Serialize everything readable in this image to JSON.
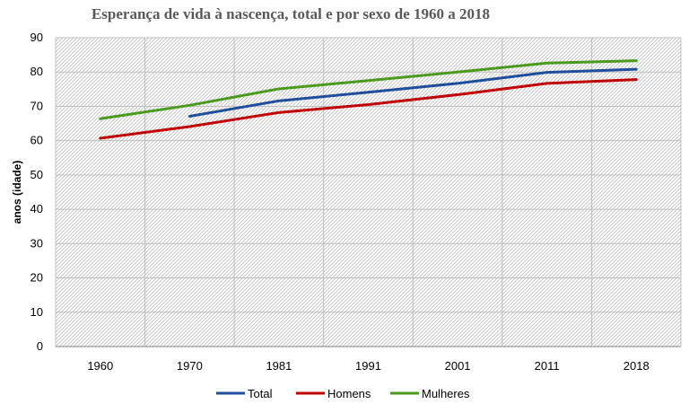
{
  "chart_data": {
    "type": "line",
    "title": "Esperança de vida à nascença, total e por sexo de 1960 a 2018",
    "ylabel": "anos (idade)",
    "xlabel": "",
    "categories": [
      "1960",
      "1970",
      "1981",
      "1991",
      "2001",
      "2011",
      "2018"
    ],
    "y_ticks": [
      "0",
      "10",
      "20",
      "30",
      "40",
      "50",
      "60",
      "70",
      "80",
      "90"
    ],
    "ylim": [
      0,
      90
    ],
    "grid": true,
    "legend_position": "bottom",
    "series": [
      {
        "name": "Total",
        "color": "#1f4e9a",
        "values": [
          null,
          67.1,
          71.6,
          74.1,
          76.7,
          79.9,
          80.8
        ]
      },
      {
        "name": "Homens",
        "color": "#c00000",
        "values": [
          60.7,
          64.1,
          68.2,
          70.5,
          73.4,
          76.7,
          77.8
        ]
      },
      {
        "name": "Mulheres",
        "color": "#4a9a1e",
        "values": [
          66.4,
          70.3,
          75.1,
          77.5,
          80.0,
          82.6,
          83.3
        ]
      }
    ]
  }
}
